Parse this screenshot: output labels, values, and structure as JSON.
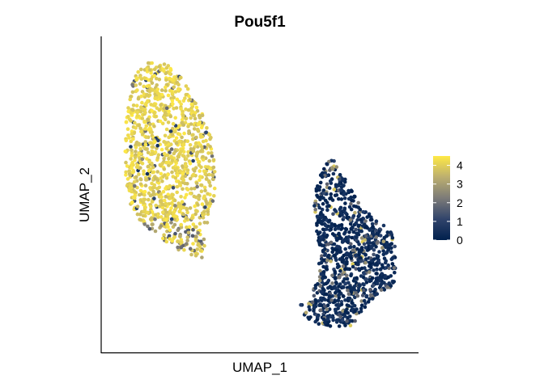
{
  "chart_data": {
    "type": "scatter",
    "title": "Pou5f1",
    "xlabel": "UMAP_1",
    "ylabel": "UMAP_2",
    "axis_ticks_shown": false,
    "grid": false,
    "colorbar": {
      "placement": "right",
      "min": 0,
      "max": 4.5,
      "ticks": [
        0,
        1,
        2,
        3,
        4
      ],
      "tick_labels": [
        "0",
        "1",
        "2",
        "3",
        "4"
      ],
      "low_color": "#00204d",
      "mid_color": "#7c7b78",
      "high_color": "#ffe945"
    },
    "clusters": [
      {
        "description": "high expression cluster (left)",
        "n_points": 1150,
        "umap1_range": [
          0.0,
          0.35
        ],
        "umap2_range": [
          0.3,
          1.0
        ],
        "mean_expression": 3.9
      },
      {
        "description": "low expression cluster (right)",
        "n_points": 1000,
        "umap1_range": [
          0.62,
          0.95
        ],
        "umap2_range": [
          0.0,
          0.65
        ],
        "mean_expression": 0.4
      }
    ]
  }
}
